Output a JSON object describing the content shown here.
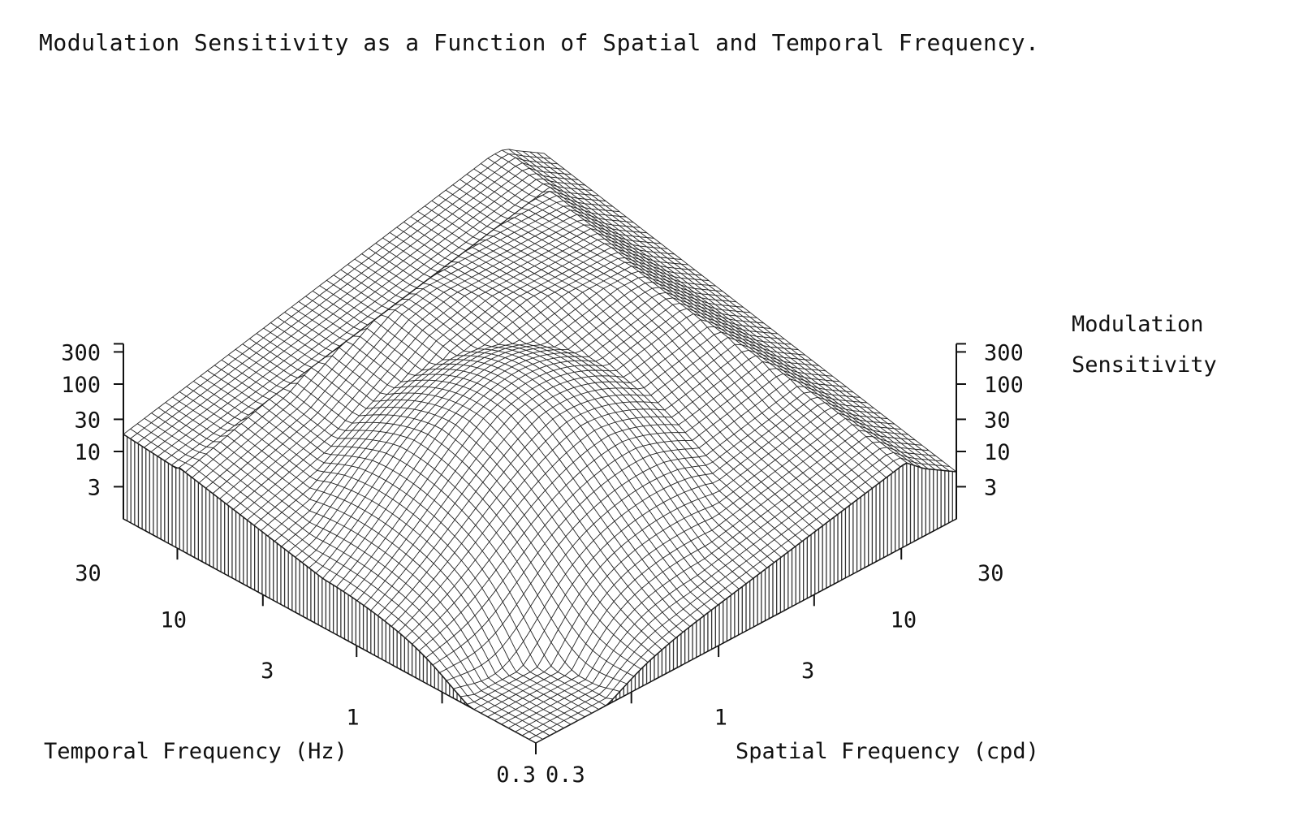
{
  "chart_data": {
    "type": "surface",
    "title": "Modulation Sensitivity as a Function of Spatial and Temporal Frequency.",
    "zlabel_lines": [
      "Modulation",
      "Sensitivity"
    ],
    "xlabel": "Temporal Frequency (Hz)",
    "ylabel": "Spatial Frequency (cpd)",
    "temporal_ticks": [
      "0.3",
      "1",
      "3",
      "10",
      "30"
    ],
    "spatial_ticks": [
      "0.3",
      "1",
      "3",
      "10",
      "30"
    ],
    "z_ticks": [
      "3",
      "10",
      "30",
      "100",
      "300"
    ],
    "scale": "log",
    "temporal_range_hz": [
      0.3,
      60
    ],
    "spatial_range_cpd": [
      0.3,
      60
    ],
    "z_range": [
      1,
      300
    ],
    "peak": {
      "temporal_hz": 4,
      "spatial_cpd": 3,
      "sensitivity": 300
    },
    "edge_profile_temporal_at_low_spatial": [
      {
        "temporal_hz": 0.3,
        "sensitivity": 1
      },
      {
        "temporal_hz": 1,
        "sensitivity": 3
      },
      {
        "temporal_hz": 3,
        "sensitivity": 15
      },
      {
        "temporal_hz": 10,
        "sensitivity": 50
      },
      {
        "temporal_hz": 20,
        "sensitivity": 60
      },
      {
        "temporal_hz": 30,
        "sensitivity": 15
      },
      {
        "temporal_hz": 60,
        "sensitivity": 18
      }
    ],
    "edge_profile_spatial_at_low_temporal": [
      {
        "spatial_cpd": 0.3,
        "sensitivity": 1
      },
      {
        "spatial_cpd": 1,
        "sensitivity": 3
      },
      {
        "spatial_cpd": 3,
        "sensitivity": 20
      },
      {
        "spatial_cpd": 10,
        "sensitivity": 50
      },
      {
        "spatial_cpd": 20,
        "sensitivity": 50
      },
      {
        "spatial_cpd": 40,
        "sensitivity": 10
      },
      {
        "spatial_cpd": 60,
        "sensitivity": 5
      }
    ]
  }
}
